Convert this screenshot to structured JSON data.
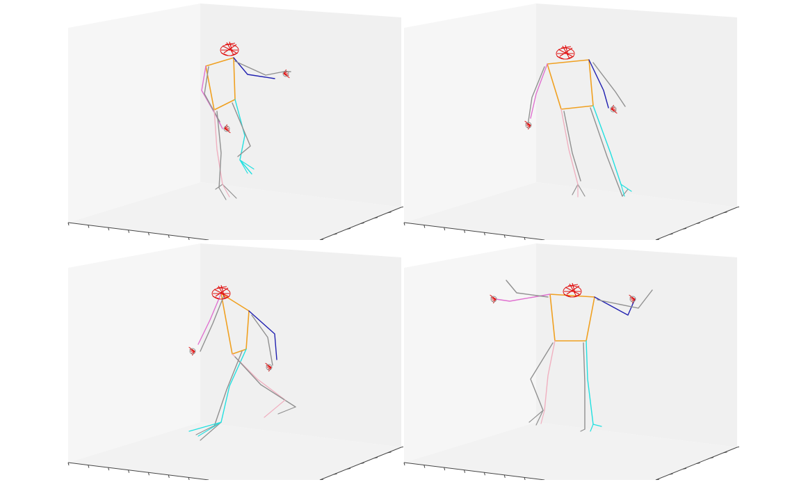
{
  "figure": {
    "panels": [
      {
        "id": "top-left"
      },
      {
        "id": "top-right"
      },
      {
        "id": "bottom-left"
      },
      {
        "id": "bottom-right"
      }
    ],
    "colors": {
      "background": "#ffffff",
      "left_wall": "#f6f6f6",
      "back_wall": "#f0f0f0",
      "floor": "#f2f2f2",
      "axis_line": "#444444",
      "torso": "#f0a020",
      "right_arm": "#2020b0",
      "left_arm": "#e070d0",
      "right_leg": "#20e0e0",
      "left_leg": "#f0b0c0",
      "secondary": "#909090",
      "face_hands": "#e01010"
    }
  }
}
